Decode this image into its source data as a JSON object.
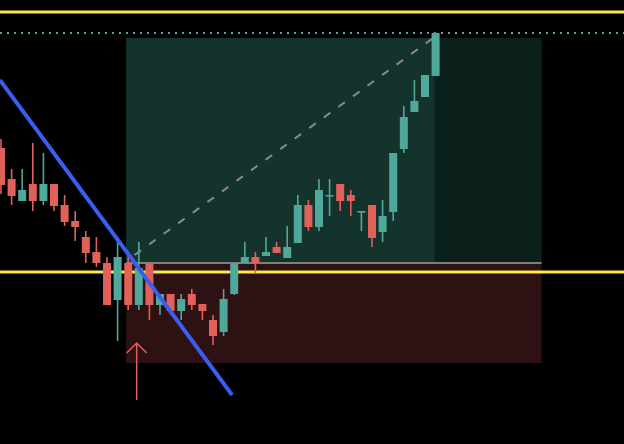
{
  "chart_data": {
    "type": "candlestick",
    "title": "",
    "xlabel": "",
    "ylabel": "",
    "ylim": [
      0,
      44.4
    ],
    "grid": false,
    "colors": {
      "background": "#000000",
      "up": "#4fa89a",
      "down": "#e0605a",
      "level_line": "#fbe74a",
      "dotted_line": "#4fa89a",
      "trendline": "#3a5ef0",
      "profit_zone": "#15332d",
      "profit_zone_future": "#0b1f1a",
      "loss_zone": "#2e1112",
      "entry_line": "#7f7f7f",
      "arrow": "#e0605a"
    },
    "candles": [
      {
        "o": 29.6,
        "h": 30.5,
        "l": 25.0,
        "c": 25.9
      },
      {
        "o": 26.5,
        "h": 27.5,
        "l": 23.9,
        "c": 24.8
      },
      {
        "o": 24.3,
        "h": 27.5,
        "l": 24.3,
        "c": 25.4
      },
      {
        "o": 26.0,
        "h": 30.1,
        "l": 23.3,
        "c": 24.3
      },
      {
        "o": 24.3,
        "h": 29.1,
        "l": 23.9,
        "c": 26.0
      },
      {
        "o": 26.0,
        "h": 26.0,
        "l": 23.3,
        "c": 23.8
      },
      {
        "o": 23.9,
        "h": 24.9,
        "l": 21.8,
        "c": 22.2
      },
      {
        "o": 22.3,
        "h": 23.3,
        "l": 20.3,
        "c": 21.7
      },
      {
        "o": 20.7,
        "h": 21.3,
        "l": 18.1,
        "c": 19.1
      },
      {
        "o": 19.2,
        "h": 20.7,
        "l": 17.7,
        "c": 18.1
      },
      {
        "o": 18.1,
        "h": 18.7,
        "l": 13.9,
        "c": 13.9
      },
      {
        "o": 14.4,
        "h": 20.7,
        "l": 10.3,
        "c": 18.7
      },
      {
        "o": 18.1,
        "h": 19.2,
        "l": 13.4,
        "c": 13.9
      },
      {
        "o": 13.9,
        "h": 20.2,
        "l": 13.4,
        "c": 17.6
      },
      {
        "o": 18.1,
        "h": 18.1,
        "l": 12.4,
        "c": 13.9
      },
      {
        "o": 13.9,
        "h": 15.0,
        "l": 12.9,
        "c": 15.0
      },
      {
        "o": 15.0,
        "h": 15.0,
        "l": 12.9,
        "c": 13.3
      },
      {
        "o": 13.3,
        "h": 15.0,
        "l": 12.4,
        "c": 14.5
      },
      {
        "o": 15.0,
        "h": 15.5,
        "l": 13.4,
        "c": 13.9
      },
      {
        "o": 14.0,
        "h": 14.0,
        "l": 12.4,
        "c": 13.3
      },
      {
        "o": 12.4,
        "h": 12.9,
        "l": 9.9,
        "c": 10.8
      },
      {
        "o": 11.2,
        "h": 15.5,
        "l": 10.8,
        "c": 14.5
      },
      {
        "o": 15.0,
        "h": 18.1,
        "l": 14.9,
        "c": 18.1
      },
      {
        "o": 18.1,
        "h": 20.2,
        "l": 18.1,
        "c": 18.7
      },
      {
        "o": 18.7,
        "h": 19.2,
        "l": 17.1,
        "c": 18.1
      },
      {
        "o": 18.8,
        "h": 20.7,
        "l": 18.8,
        "c": 19.2
      },
      {
        "o": 19.7,
        "h": 20.2,
        "l": 19.1,
        "c": 19.1
      },
      {
        "o": 18.6,
        "h": 21.8,
        "l": 18.6,
        "c": 19.7
      },
      {
        "o": 20.1,
        "h": 24.9,
        "l": 20.1,
        "c": 23.9
      },
      {
        "o": 23.9,
        "h": 24.4,
        "l": 21.3,
        "c": 21.7
      },
      {
        "o": 21.7,
        "h": 26.5,
        "l": 21.3,
        "c": 25.4
      },
      {
        "o": 24.9,
        "h": 26.5,
        "l": 22.8,
        "c": 24.9
      },
      {
        "o": 26.0,
        "h": 26.0,
        "l": 23.3,
        "c": 24.3
      },
      {
        "o": 24.9,
        "h": 25.4,
        "l": 22.8,
        "c": 24.3
      },
      {
        "o": 23.3,
        "h": 23.3,
        "l": 21.3,
        "c": 23.3
      },
      {
        "o": 23.9,
        "h": 23.9,
        "l": 19.7,
        "c": 20.6
      },
      {
        "o": 21.2,
        "h": 24.4,
        "l": 20.2,
        "c": 22.8
      },
      {
        "o": 23.2,
        "h": 29.1,
        "l": 22.3,
        "c": 29.1
      },
      {
        "o": 29.5,
        "h": 33.8,
        "l": 29.1,
        "c": 32.7
      },
      {
        "o": 33.2,
        "h": 36.4,
        "l": 33.2,
        "c": 34.3
      },
      {
        "o": 34.7,
        "h": 36.9,
        "l": 34.7,
        "c": 36.9
      },
      {
        "o": 36.8,
        "h": 41.1,
        "l": 36.8,
        "c": 41.1
      }
    ],
    "horizontal_levels": [
      43.2,
      17.2
    ],
    "dotted_level": 41.1,
    "trendline": {
      "from": {
        "bar": -0.1,
        "price": 36.4
      },
      "to": {
        "bar": 21.8,
        "price": 4.9
      }
    },
    "long_position": {
      "start_bar": 11.8,
      "end_bar": 51.0,
      "current_bar": 40.9,
      "entry": 18.1,
      "target": 40.6,
      "stop": 8.1
    },
    "projection_line": {
      "from": {
        "bar": 12.6,
        "price": 18.9
      },
      "to": {
        "bar": 40.9,
        "price": 40.7
      }
    },
    "arrow": {
      "bar": 12.8,
      "from_price": 4.4,
      "to_price": 10.1
    }
  }
}
